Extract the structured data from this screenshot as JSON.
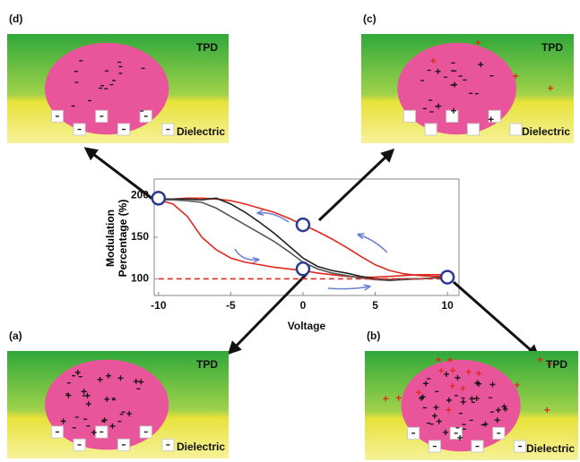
{
  "chart_data": {
    "type": "line",
    "xlabel": "Voltage",
    "ylabel": "Modulation Percentage (%)",
    "x": [
      -10,
      -9,
      -8,
      -7,
      -6,
      -5,
      -4,
      -3,
      -2,
      -1,
      0,
      1,
      2,
      3,
      4,
      5,
      6,
      7,
      8,
      9,
      10
    ],
    "series": [
      {
        "color": "#e0281e",
        "values": [
          195,
          196,
          197,
          197,
          196,
          194,
          190,
          185,
          180,
          173,
          165,
          157,
          148,
          138,
          127,
          117,
          110,
          106,
          104,
          103,
          103
        ]
      },
      {
        "color": "#e0281e",
        "values": [
          195,
          190,
          175,
          150,
          135,
          125,
          120,
          117,
          114,
          112,
          110,
          107,
          105,
          103,
          102,
          102,
          103,
          104,
          105,
          105,
          105
        ]
      },
      {
        "color": "#222222",
        "values": [
          196,
          196,
          196,
          195,
          197,
          190,
          180,
          168,
          155,
          140,
          125,
          115,
          110,
          107,
          103,
          100,
          99,
          100,
          100,
          101,
          102
        ]
      },
      {
        "color": "#555555",
        "values": [
          195,
          195,
          194,
          192,
          185,
          175,
          165,
          155,
          145,
          133,
          120,
          112,
          107,
          104,
          101,
          99,
          98,
          99,
          100,
          101,
          101
        ]
      },
      {
        "color": "#e0281e",
        "dashed": true,
        "values": [
          100,
          100,
          100,
          100,
          100,
          100,
          100,
          100,
          100,
          100,
          100,
          100,
          100,
          100,
          100,
          100,
          100,
          100,
          100,
          100,
          100
        ]
      }
    ],
    "highlight_points": {
      "color": "#2b3990",
      "x": [
        -10,
        0,
        0,
        10
      ],
      "y": [
        197,
        165,
        112,
        102
      ]
    },
    "xlim": [
      -10.3,
      10.8
    ],
    "ylim": [
      80,
      220
    ],
    "xticks": [
      -10,
      -5,
      0,
      5,
      10
    ],
    "yticks": [
      100,
      150,
      200
    ]
  },
  "panels": [
    {
      "label": "(d)",
      "top_label": "TPD",
      "bottom_label": "Dielectric"
    },
    {
      "label": "(c)",
      "top_label": "TPD",
      "bottom_label": "Dielectric"
    },
    {
      "label": "(a)",
      "top_label": "TPD",
      "bottom_label": "Dielectric"
    },
    {
      "label": "(b)",
      "top_label": "TPD",
      "bottom_label": "Dielectric"
    }
  ]
}
